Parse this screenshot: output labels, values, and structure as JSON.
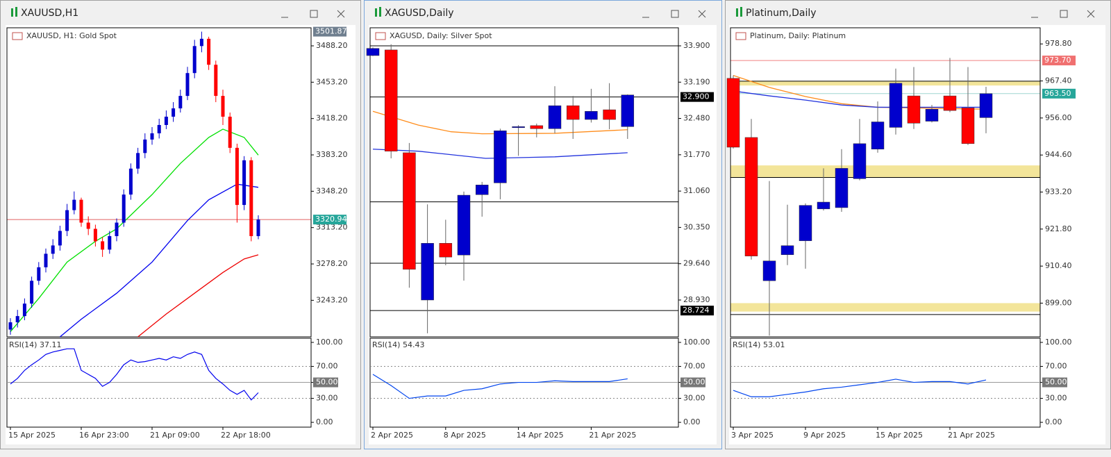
{
  "chart_data": [
    {
      "type": "candlestick",
      "window_title": "XAUUSD,H1",
      "legend": "XAUUSD, H1:  Gold Spot",
      "categories": [
        "15 Apr 2025",
        null,
        null,
        null,
        null,
        null,
        null,
        null,
        null,
        null,
        "16 Apr 23:00",
        null,
        null,
        null,
        null,
        null,
        null,
        null,
        null,
        null,
        "21 Apr 09:00",
        null,
        null,
        null,
        null,
        null,
        null,
        null,
        null,
        null,
        "22 Apr 18:00",
        null,
        null,
        null,
        null,
        null
      ],
      "open": [
        3215,
        3222,
        3228,
        3240,
        3262,
        3275,
        3288,
        3296,
        3310,
        3330,
        3340,
        3318,
        3312,
        3300,
        3292,
        3305,
        3318,
        3345,
        3370,
        3385,
        3398,
        3404,
        3412,
        3420,
        3428,
        3440,
        3462,
        3488,
        3495,
        3470,
        3440,
        3420,
        3390,
        3335,
        3378,
        3305
      ],
      "high": [
        3226,
        3234,
        3245,
        3266,
        3280,
        3293,
        3302,
        3315,
        3336,
        3348,
        3342,
        3324,
        3316,
        3304,
        3310,
        3322,
        3350,
        3375,
        3390,
        3404,
        3410,
        3418,
        3426,
        3434,
        3446,
        3468,
        3494,
        3501.87,
        3497,
        3474,
        3446,
        3424,
        3394,
        3382,
        3381,
        3325
      ],
      "low": [
        3210,
        3217,
        3224,
        3236,
        3258,
        3270,
        3283,
        3291,
        3305,
        3326,
        3314,
        3306,
        3295,
        3285,
        3288,
        3300,
        3314,
        3340,
        3365,
        3380,
        3393,
        3399,
        3408,
        3415,
        3424,
        3436,
        3457,
        3482,
        3465,
        3434,
        3412,
        3385,
        3318,
        3330,
        3300,
        3302
      ],
      "close": [
        3222,
        3228,
        3240,
        3262,
        3275,
        3288,
        3296,
        3310,
        3330,
        3340,
        3318,
        3312,
        3300,
        3292,
        3305,
        3318,
        3345,
        3370,
        3385,
        3398,
        3404,
        3412,
        3420,
        3428,
        3440,
        3462,
        3488,
        3495,
        3470,
        3440,
        3420,
        3390,
        3335,
        3378,
        3305,
        3320.94
      ],
      "up_color": "#0000cd",
      "down_color": "#ff0000",
      "ylim": [
        3208,
        3505.6
      ],
      "yticks": [
        {
          "value": 3243.2,
          "label": "3243.20"
        },
        {
          "value": 3278.2,
          "label": "3278.20"
        },
        {
          "value": 3313.2,
          "label": "3313.20"
        },
        {
          "value": 3348.2,
          "label": "3348.20"
        },
        {
          "value": 3383.2,
          "label": "3383.20"
        },
        {
          "value": 3418.2,
          "label": "3418.20"
        },
        {
          "value": 3453.2,
          "label": "3453.20"
        },
        {
          "value": 3488.2,
          "label": "3488.20"
        }
      ],
      "lines": [
        {
          "value": 3320.94,
          "color": "#e06060"
        }
      ],
      "zones": [],
      "price_tags": [
        {
          "value": 3501.87,
          "color": "#6f7f8f"
        },
        {
          "value": 3320.94,
          "color": "#26a69a"
        }
      ],
      "moving_averages": [
        {
          "color": "#00e000",
          "x": [
            0,
            4,
            8,
            12,
            15,
            20,
            24,
            28,
            30,
            33,
            35
          ],
          "values": [
            3213,
            3245,
            3280,
            3300,
            3312,
            3345,
            3375,
            3400,
            3408,
            3400,
            3383
          ]
        },
        {
          "color": "#0000ee",
          "x": [
            7,
            10,
            15,
            20,
            25,
            28,
            32,
            35
          ],
          "values": [
            3208,
            3225,
            3250,
            3280,
            3320,
            3340,
            3355,
            3352
          ]
        },
        {
          "color": "#ee0000",
          "x": [
            18,
            22,
            26,
            30,
            33,
            35
          ],
          "values": [
            3208,
            3230,
            3250,
            3270,
            3283,
            3287
          ]
        }
      ],
      "rsi": {
        "title": "RSI(14) 37.11",
        "color": "#0000ee",
        "ylim": [
          -6,
          105.2
        ],
        "values": [
          48,
          55,
          65,
          72,
          78,
          85,
          88,
          90,
          92,
          92,
          65,
          60,
          55,
          45,
          50,
          60,
          72,
          78,
          75,
          76,
          78,
          80,
          78,
          82,
          80,
          85,
          88,
          85,
          65,
          55,
          48,
          40,
          35,
          40,
          28,
          37.11
        ],
        "yticks": [
          {
            "value": 0,
            "label": "0.00"
          },
          {
            "value": 30,
            "label": "30.00",
            "line": "dashed"
          },
          {
            "value": 50,
            "label": "50.00",
            "line": "solid",
            "tag": true
          },
          {
            "value": 70,
            "label": "70.00",
            "line": "dashed"
          },
          {
            "value": 100,
            "label": "100.00"
          }
        ]
      }
    },
    {
      "type": "candlestick",
      "window_title": "XAGUSD,Daily",
      "legend": "XAGUSD, Daily:  Silver Spot",
      "categories": [
        "2 Apr 2025",
        null,
        null,
        null,
        "8 Apr 2025",
        null,
        null,
        null,
        "14 Apr 2025",
        null,
        null,
        null,
        "21 Apr 2025",
        null,
        null
      ],
      "open": [
        33.71,
        33.82,
        31.81,
        28.93,
        30.04,
        29.81,
        30.99,
        31.22,
        32.3,
        32.34,
        32.28,
        32.73,
        32.46,
        32.65,
        32.32
      ],
      "high": [
        33.87,
        33.93,
        32.0,
        30.8,
        30.5,
        31.05,
        31.24,
        32.28,
        32.35,
        32.38,
        33.11,
        32.92,
        33.06,
        33.17,
        32.95
      ],
      "low": [
        33.7,
        31.7,
        29.17,
        28.28,
        29.61,
        29.31,
        30.56,
        30.9,
        31.75,
        32.11,
        32.19,
        32.08,
        32.4,
        32.27,
        32.08
      ],
      "close": [
        33.85,
        31.84,
        29.53,
        30.04,
        29.77,
        30.98,
        31.18,
        32.24,
        32.32,
        32.28,
        32.73,
        32.46,
        32.62,
        32.46,
        32.94
      ],
      "up_color": "#0000cd",
      "down_color": "#ff0000",
      "ylim": [
        28.21,
        34.253
      ],
      "yticks": [
        {
          "value": 28.93,
          "label": "28.930"
        },
        {
          "value": 29.64,
          "label": "29.640"
        },
        {
          "value": 30.35,
          "label": "30.350"
        },
        {
          "value": 31.06,
          "label": "31.060"
        },
        {
          "value": 31.77,
          "label": "31.770"
        },
        {
          "value": 32.48,
          "label": "32.480"
        },
        {
          "value": 33.19,
          "label": "33.190"
        },
        {
          "value": 33.9,
          "label": "33.900"
        }
      ],
      "lines": [
        {
          "value": 33.9,
          "color": "#000000"
        },
        {
          "value": 32.9,
          "color": "#000000"
        },
        {
          "value": 30.85,
          "color": "#000000"
        },
        {
          "value": 29.65,
          "color": "#000000"
        },
        {
          "value": 28.724,
          "color": "#000000"
        }
      ],
      "zones": [],
      "price_tags": [
        {
          "value": 32.9,
          "label": "32.900",
          "color": "#000000"
        },
        {
          "value": 28.724,
          "color": "#000000"
        }
      ],
      "moving_averages": [
        {
          "color": "#ff8c1a",
          "x": [
            0,
            2.5,
            4.3,
            6,
            10,
            14
          ],
          "values": [
            32.62,
            32.35,
            32.22,
            32.18,
            32.19,
            32.26
          ]
        },
        {
          "color": "#2233dd",
          "x": [
            0,
            2.5,
            6.2,
            10,
            14
          ],
          "values": [
            31.88,
            31.84,
            31.7,
            31.73,
            31.81
          ]
        }
      ],
      "rsi": {
        "title": "RSI(14) 54.43",
        "color": "#0044ee",
        "ylim": [
          -6,
          105.2
        ],
        "values": [
          60,
          46,
          30,
          33,
          33,
          40,
          42,
          48,
          50,
          50,
          52,
          51,
          51,
          51,
          54.43
        ],
        "yticks": [
          {
            "value": 0,
            "label": "0.00"
          },
          {
            "value": 30,
            "label": "30.00",
            "line": "dashed"
          },
          {
            "value": 50,
            "label": "50.00",
            "line": "solid",
            "tag": true
          },
          {
            "value": 70,
            "label": "70.00",
            "line": "dashed"
          },
          {
            "value": 100,
            "label": "100.00"
          }
        ]
      }
    },
    {
      "type": "candlestick",
      "window_title": "Platinum,Daily",
      "legend": "Platinum, Daily:  Platinum",
      "categories": [
        "3 Apr 2025",
        null,
        null,
        null,
        "9 Apr 2025",
        null,
        null,
        null,
        "15 Apr 2025",
        null,
        null,
        null,
        "21 Apr 2025",
        null,
        null
      ],
      "open": [
        968.2,
        950.0,
        905.9,
        913.9,
        918.2,
        928.0,
        928.4,
        937.3,
        946.4,
        953.1,
        962.8,
        955.0,
        962.8,
        959.1,
        956.1
      ],
      "high": [
        969.1,
        955.7,
        936.6,
        929.3,
        929.7,
        940.5,
        946.4,
        955.7,
        961.1,
        971.2,
        971.7,
        960.0,
        974.5,
        971.7,
        965.6
      ],
      "low": [
        946.6,
        912.4,
        889.0,
        910.7,
        909.6,
        927.5,
        927.1,
        936.8,
        945.3,
        950.9,
        952.6,
        954.6,
        957.8,
        947.7,
        951.3
      ],
      "close": [
        947.0,
        913.5,
        912.0,
        916.7,
        929.1,
        930.1,
        940.5,
        948.1,
        954.8,
        966.7,
        954.4,
        958.7,
        958.3,
        948.1,
        963.5
      ],
      "up_color": "#0000cd",
      "down_color": "#ff0000",
      "ylim": [
        888.62,
        983.77
      ],
      "yticks": [
        {
          "value": 899,
          "label": "899.00"
        },
        {
          "value": 910.4,
          "label": "910.40"
        },
        {
          "value": 921.8,
          "label": "921.80"
        },
        {
          "value": 933.2,
          "label": "933.20"
        },
        {
          "value": 944.6,
          "label": "944.60"
        },
        {
          "value": 956,
          "label": "956.00"
        },
        {
          "value": 967.4,
          "label": "967.40"
        },
        {
          "value": 978.8,
          "label": "978.80"
        }
      ],
      "lines": [
        {
          "value": 973.7,
          "color": "#f08080"
        },
        {
          "value": 963.5,
          "color": "#9fd6d0"
        },
        {
          "value": 967.34,
          "color": "#000000"
        },
        {
          "value": 937.7,
          "color": "#000000"
        },
        {
          "value": 895.5,
          "color": "#000000"
        }
      ],
      "zones": [
        {
          "from": 966.0,
          "to": 967.3,
          "color": "#f3e59a"
        },
        {
          "from": 937.7,
          "to": 941.4,
          "color": "#f3e59a"
        },
        {
          "from": 896.4,
          "to": 899.0,
          "color": "#f3e59a"
        }
      ],
      "price_tags": [
        {
          "value": 973.7,
          "label": "973.70",
          "color": "#f07070"
        },
        {
          "value": 963.5,
          "label": "963.50",
          "color": "#26a69a"
        }
      ],
      "moving_averages": [
        {
          "color": "#ff8c1a",
          "x": [
            0,
            2,
            4,
            6,
            8,
            14
          ],
          "values": [
            969.1,
            965.4,
            962.6,
            960.4,
            959.3,
            958.7
          ]
        },
        {
          "color": "#2233dd",
          "x": [
            0,
            2,
            4,
            6,
            8,
            14
          ],
          "values": [
            964.3,
            962.8,
            961.5,
            960.0,
            959.3,
            959.3
          ]
        }
      ],
      "rsi": {
        "title": "RSI(14) 53.01",
        "color": "#0044ee",
        "ylim": [
          -6,
          105.2
        ],
        "values": [
          40,
          32,
          32,
          35,
          38,
          42,
          44,
          47,
          50,
          54,
          50,
          51,
          51,
          48,
          53.01
        ],
        "yticks": [
          {
            "value": 0,
            "label": "0.00"
          },
          {
            "value": 30,
            "label": "30.00",
            "line": "dashed"
          },
          {
            "value": 50,
            "label": "50.00",
            "line": "solid",
            "tag": true
          },
          {
            "value": 70,
            "label": "70.00",
            "line": "dashed"
          },
          {
            "value": 100,
            "label": "100.00"
          }
        ]
      }
    }
  ]
}
